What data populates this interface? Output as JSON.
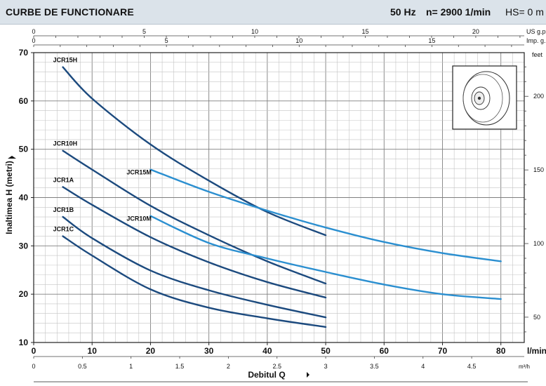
{
  "header": {
    "title": "CURBE DE FUNCTIONARE",
    "frequency": "50 Hz",
    "speed": "n= 2900  1/min",
    "suction_head": "HS= 0 m"
  },
  "chart_data": {
    "type": "line",
    "ylabel": "Inaltimea  H  (metri)",
    "xlabel": "Debitul  Q",
    "x_unit": "l/min",
    "xlim": [
      0,
      84
    ],
    "ylim": [
      10,
      70
    ],
    "x_ticks": [
      0,
      10,
      20,
      30,
      40,
      50,
      60,
      70,
      80
    ],
    "y_ticks": [
      10,
      20,
      30,
      40,
      50,
      60,
      70
    ],
    "grid": true,
    "secondary_axes": {
      "us_gpm": {
        "label": "US g.p.m.",
        "ticks": [
          0,
          5,
          10,
          15,
          20
        ]
      },
      "imp_gpm": {
        "label": "Imp. g.p.m.",
        "ticks": [
          0,
          5,
          10,
          15
        ]
      },
      "m3h": {
        "label": "m³/h",
        "ticks": [
          "0",
          "0.5",
          "1",
          "1.5",
          "2",
          "2.5",
          "3",
          "3.5",
          "4",
          "4.5"
        ]
      },
      "feet": {
        "label": "feet",
        "ticks": [
          50,
          100,
          150,
          200
        ]
      }
    },
    "series": [
      {
        "name": "JCR15H",
        "color": "#1c4a7e",
        "x": [
          5,
          10,
          20,
          30,
          40,
          50
        ],
        "y": [
          67,
          60.5,
          51,
          43.5,
          37,
          32.2
        ]
      },
      {
        "name": "JCR10H",
        "color": "#1c4a7e",
        "x": [
          5,
          10,
          20,
          30,
          40,
          50
        ],
        "y": [
          49.7,
          45.8,
          38.3,
          32.2,
          26.8,
          22.2
        ]
      },
      {
        "name": "JCR1A",
        "color": "#1c4a7e",
        "x": [
          5,
          10,
          20,
          30,
          40,
          50
        ],
        "y": [
          42.2,
          38.5,
          31.8,
          26.6,
          22.5,
          19.3
        ]
      },
      {
        "name": "JCR1B",
        "color": "#1c4a7e",
        "x": [
          5,
          10,
          20,
          30,
          40,
          50
        ],
        "y": [
          36,
          31.6,
          24.9,
          20.8,
          17.8,
          15.2
        ]
      },
      {
        "name": "JCR1C",
        "color": "#1c4a7e",
        "x": [
          5,
          10,
          20,
          30,
          40,
          50
        ],
        "y": [
          32,
          28,
          21,
          17.2,
          15,
          13.2
        ]
      },
      {
        "name": "JCR15M",
        "color": "#2b8fd0",
        "x": [
          20,
          30,
          40,
          50,
          60,
          70,
          80
        ],
        "y": [
          45.8,
          41.2,
          37.3,
          33.8,
          30.8,
          28.5,
          26.8
        ]
      },
      {
        "name": "JCR10M",
        "color": "#2b8fd0",
        "x": [
          20,
          30,
          40,
          50,
          60,
          70,
          80
        ],
        "y": [
          36.2,
          30.6,
          27.4,
          24.6,
          22,
          20,
          19
        ]
      }
    ]
  }
}
